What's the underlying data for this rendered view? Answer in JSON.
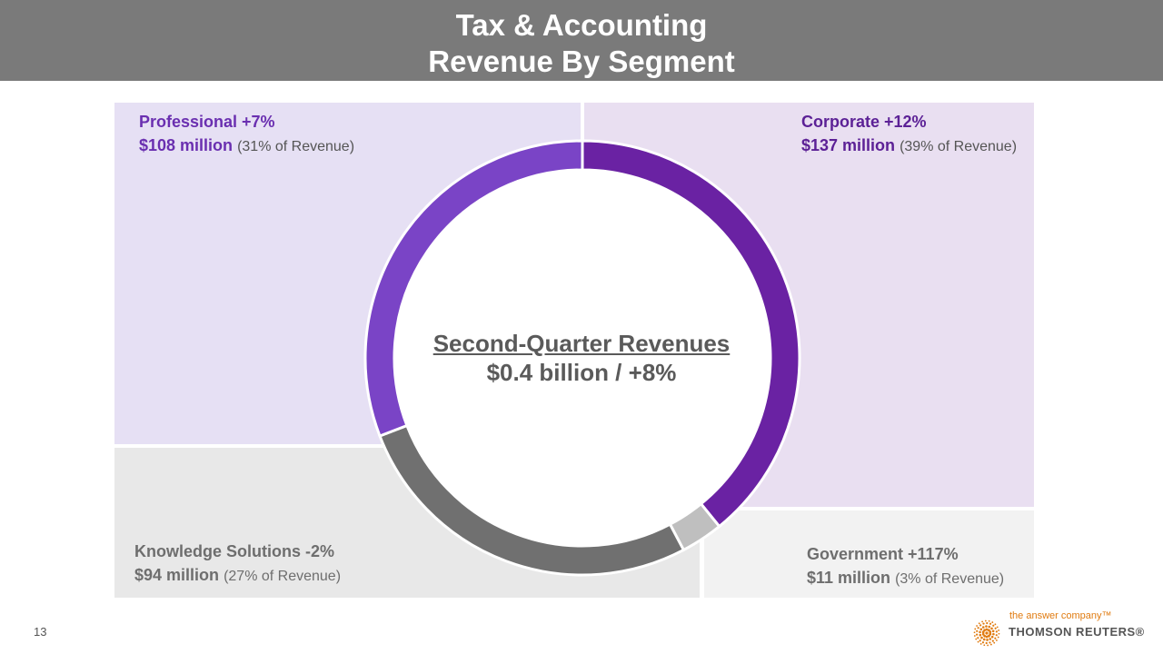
{
  "header": {
    "line1": "Tax & Accounting",
    "line2": "Revenue By Segment"
  },
  "center": {
    "title": "Second-Quarter Revenues",
    "value": "$0.4 billion / +8%"
  },
  "chart_data": {
    "type": "pie",
    "title": "Second-Quarter Revenues",
    "series": [
      {
        "name": "Corporate",
        "growth": "+12%",
        "value": 137,
        "value_label": "$137 million",
        "share_label": "(39% of Revenue)",
        "color": "#6a22a3"
      },
      {
        "name": "Government",
        "growth": "+117%",
        "value": 11,
        "value_label": "$11 million",
        "share_label": "(3% of Revenue)",
        "color": "#bfbfbf"
      },
      {
        "name": "Knowledge Solutions",
        "growth": "-2%",
        "value": 94,
        "value_label": "$94 million",
        "share_label": "(27% of Revenue)",
        "color": "#707070"
      },
      {
        "name": "Professional",
        "growth": "+7%",
        "value": 108,
        "value_label": "$108 million",
        "share_label": "(31% of Revenue)",
        "color": "#7a44c6"
      }
    ]
  },
  "labels": {
    "professional": {
      "head": "Professional +7%",
      "amount": "$108 million",
      "share": "(31% of Revenue)"
    },
    "corporate": {
      "head": "Corporate +12%",
      "amount": "$137 million",
      "share": "(39% of Revenue)"
    },
    "knowledge": {
      "head": "Knowledge Solutions -2%",
      "amount": "$94 million",
      "share": "(27% of Revenue)"
    },
    "government": {
      "head": "Government +117%",
      "amount": "$11 million",
      "share": "(3% of Revenue)"
    }
  },
  "colors": {
    "purple_text": "#6a2fb0",
    "gray_text": "#6e6e6e",
    "logo_orange": "#e07b10"
  },
  "footer": {
    "page_number": "13",
    "tagline": "the answer company™",
    "brand": "THOMSON REUTERS®",
    "logo_icon": "thomson-reuters-dot-globe"
  }
}
